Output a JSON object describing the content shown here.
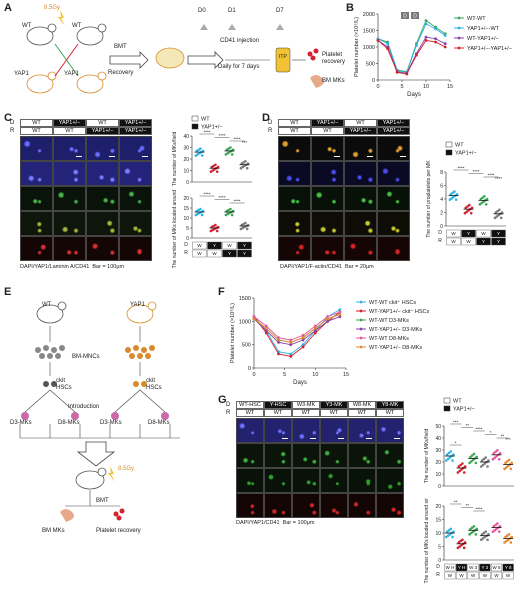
{
  "panels": {
    "A": {
      "label": "A",
      "texts": {
        "dose": "8.5Gy",
        "wt1": "WT",
        "wt2": "WT",
        "yap1": "YAP1",
        "yap2": "YAP1",
        "sup": "+/-",
        "bmt": "BMT",
        "recovery": "Recovery",
        "d0": "D0",
        "d1": "D1",
        "d7": "D7",
        "cd41": "CD41 injection",
        "daily": "Daily for 7 days",
        "itp": "ITP",
        "platelet": "Platelet",
        "recovery2": "recovery",
        "bmmks": "BM MKs"
      }
    },
    "B": {
      "label": "B",
      "ylabel": "Platelet number (×10⁹/L)",
      "xlabel": "Days",
      "legend": [
        "WT-WT",
        "YAP1+/−-WT",
        "WT-YAP1+/−",
        "YAP1+/−-YAP1+/−"
      ],
      "markers": [
        "D",
        "D"
      ]
    },
    "C": {
      "label": "C",
      "D_row": [
        "WT",
        "YAP1+/−",
        "WT",
        "YAP1+/−"
      ],
      "R_row": [
        "WT",
        "WT",
        "YAP1+/−",
        "YAP1+/−"
      ],
      "legend": [
        "WT",
        "YAP1+/−"
      ],
      "chart1_ylabel": "The number of MKs/field",
      "chart2_ylabel": "The number of MKs located around sinusoids",
      "stain": "DAPI/YAP1/Laminin A/CD41",
      "bar": "Bar = 100μm",
      "xtable_D": [
        "W",
        "Y",
        "W",
        "Y"
      ],
      "xtable_R": [
        "W",
        "W",
        "Y",
        "Y"
      ]
    },
    "D": {
      "label": "D",
      "D_row": [
        "WT",
        "YAP1+/−",
        "WT",
        "YAP1+/−"
      ],
      "R_row": [
        "WT",
        "WT",
        "YAP1+/−",
        "YAP1+/−"
      ],
      "legend": [
        "WT",
        "YAP1+/−"
      ],
      "chart_ylabel": "The number of proplatelets per MK",
      "stain": "DAPI/YAP1/F-actin/CD41",
      "bar": "Bar = 20μm",
      "xtable_D": [
        "W",
        "Y",
        "W",
        "Y"
      ],
      "xtable_R": [
        "W",
        "W",
        "Y",
        "Y"
      ]
    },
    "E": {
      "label": "E",
      "texts": {
        "wt": "WT",
        "yap": "YAP1",
        "bmmncs": "BM-MNCs",
        "ckit1": "ckit",
        "hscs1": "HSCs",
        "ckit2": "ckit",
        "hscs2": "HSCs",
        "intro": "Introduction",
        "d3a": "D3-MKs",
        "d8a": "D8-MKs",
        "d3b": "D3-MKs",
        "d8b": "D8-MKs",
        "dose": "8.5Gy",
        "bmt": "BMT",
        "bmmks": "BM MKs",
        "plt": "Platelet recovery"
      }
    },
    "F": {
      "label": "F",
      "ylabel": "Platelet number (×10⁹/L)",
      "xlabel": "Days",
      "legend": [
        "WT-WT ckit⁺ HSCs",
        "WT-YAP1+/− ckit⁺ HSCs",
        "WT-WT D3-MKs",
        "WT-YAP1+/− D3-MKs",
        "WT-WT D8-MKs",
        "WT-YAP1+/− D8-MKs"
      ]
    },
    "G": {
      "label": "G",
      "D_row": [
        "WT-HSC",
        "Y-HSC",
        "W3-MK",
        "Y3-MK",
        "W8-MK",
        "Y8-MK"
      ],
      "R_row": [
        "WT",
        "WT",
        "WT",
        "WT",
        "WT",
        "WT"
      ],
      "legend": [
        "WT",
        "YAP1+/−"
      ],
      "chart1_ylabel": "The number of MKs/field",
      "chart2_ylabel": "The number of MKs located around sinusoids",
      "stain": "DAPI/YAP1/CD41",
      "bar": "Bar = 100μm",
      "xtable_D": [
        "W H",
        "Y H",
        "W 3",
        "Y 3",
        "W 8",
        "Y 8"
      ],
      "xtable_R": [
        "W",
        "W",
        "W",
        "W",
        "W",
        "W"
      ]
    }
  },
  "chart_data": [
    {
      "type": "line",
      "panel": "B",
      "x": [
        0,
        2,
        4,
        6,
        8,
        10,
        12,
        14
      ],
      "xlabel": "Days",
      "ylabel": "Platelet number (×10⁹/L)",
      "xlim": [
        0,
        15
      ],
      "ylim": [
        0,
        2000
      ],
      "yticks": [
        0,
        500,
        1000,
        1500,
        2000
      ],
      "xticks": [
        0,
        5,
        10,
        15
      ],
      "series": [
        {
          "name": "WT-WT",
          "color": "#3aa655",
          "values": [
            1250,
            1150,
            300,
            250,
            1100,
            1800,
            1600,
            1400
          ]
        },
        {
          "name": "YAP1+/−-WT",
          "color": "#2db4e6",
          "values": [
            1250,
            1100,
            280,
            230,
            1050,
            1700,
            1550,
            1350
          ]
        },
        {
          "name": "WT-YAP1+/−",
          "color": "#8a3ea8",
          "values": [
            1200,
            1000,
            250,
            200,
            800,
            1300,
            1250,
            1100
          ]
        },
        {
          "name": "YAP1+/−-YAP1+/−",
          "color": "#d6202e",
          "values": [
            1200,
            950,
            230,
            180,
            750,
            1200,
            1150,
            1000
          ]
        }
      ]
    },
    {
      "type": "scatter",
      "panel": "C",
      "title": "The number of MKs/field",
      "categories": [
        "W/W",
        "Y/W",
        "W/Y",
        "Y/Y"
      ],
      "ylim": [
        0,
        40
      ],
      "yticks": [
        0,
        10,
        20,
        30,
        40
      ],
      "series": [
        {
          "name": "WT",
          "values": [
            26,
            12,
            27,
            15
          ]
        }
      ],
      "significance": [
        "****",
        "****",
        "****",
        "***"
      ]
    },
    {
      "type": "scatter",
      "panel": "C",
      "title": "The number of MKs located around sinusoids",
      "categories": [
        "W/W",
        "Y/W",
        "W/Y",
        "Y/Y"
      ],
      "ylim": [
        0,
        20
      ],
      "yticks": [
        0,
        5,
        10,
        15,
        20
      ],
      "series": [
        {
          "name": "WT",
          "values": [
            13,
            5,
            13,
            6
          ]
        }
      ],
      "significance": [
        "****",
        "****",
        "****"
      ]
    },
    {
      "type": "scatter",
      "panel": "D",
      "title": "The number of proplatelets per MK",
      "categories": [
        "W/W",
        "Y/W",
        "W/Y",
        "Y/Y"
      ],
      "ylim": [
        0,
        8
      ],
      "yticks": [
        0,
        2,
        4,
        6,
        8
      ],
      "series": [
        {
          "name": "WT",
          "values": [
            4.5,
            2.5,
            3.8,
            1.8
          ]
        }
      ],
      "significance": [
        "****",
        "****",
        "****",
        "****"
      ]
    },
    {
      "type": "line",
      "panel": "F",
      "x": [
        0,
        2,
        4,
        6,
        8,
        10,
        12,
        14
      ],
      "xlabel": "Days",
      "ylabel": "Platelet number (×10⁹/L)",
      "xlim": [
        0,
        15
      ],
      "ylim": [
        0,
        1500
      ],
      "yticks": [
        0,
        500,
        1000,
        1500
      ],
      "xticks": [
        0,
        5,
        10,
        15
      ],
      "series": [
        {
          "name": "WT-WT ckit⁺ HSCs",
          "color": "#2db4e6",
          "values": [
            1100,
            800,
            350,
            300,
            500,
            800,
            1100,
            1250
          ]
        },
        {
          "name": "WT-YAP1+/− ckit⁺ HSCs",
          "color": "#d6202e",
          "values": [
            1100,
            750,
            300,
            250,
            450,
            750,
            1000,
            1200
          ]
        },
        {
          "name": "WT-WT D3-MKs",
          "color": "#3aa655",
          "values": [
            1050,
            850,
            600,
            550,
            650,
            850,
            1050,
            1150
          ]
        },
        {
          "name": "WT-YAP1+/− D3-MKs",
          "color": "#8a3ea8",
          "values": [
            1050,
            800,
            550,
            500,
            600,
            800,
            1000,
            1100
          ]
        },
        {
          "name": "WT-WT D8-MKs",
          "color": "#e8559e",
          "values": [
            1100,
            900,
            650,
            600,
            700,
            900,
            1100,
            1200
          ]
        },
        {
          "name": "WT-YAP1+/− D8-MKs",
          "color": "#e6892d",
          "values": [
            1050,
            850,
            600,
            550,
            650,
            850,
            1050,
            1150
          ]
        }
      ]
    },
    {
      "type": "scatter",
      "panel": "G",
      "title": "The number of MKs/field",
      "categories": [
        "WH",
        "YH",
        "W3",
        "Y3",
        "W8",
        "Y8"
      ],
      "ylim": [
        0,
        50
      ],
      "yticks": [
        0,
        10,
        20,
        30,
        40,
        50
      ],
      "series": [
        {
          "name": "WT",
          "values": [
            25,
            15,
            23,
            20,
            26,
            18
          ]
        }
      ],
      "significance": [
        "***",
        "**",
        "****",
        "*",
        "**",
        "***",
        "*"
      ]
    },
    {
      "type": "scatter",
      "panel": "G",
      "title": "The number of MKs located around sinusoids",
      "categories": [
        "WH",
        "YH",
        "W3",
        "Y3",
        "W8",
        "Y8"
      ],
      "ylim": [
        0,
        20
      ],
      "yticks": [
        0,
        5,
        10,
        15,
        20
      ],
      "series": [
        {
          "name": "WT",
          "values": [
            10,
            6,
            11,
            9,
            12,
            8
          ]
        }
      ],
      "significance": [
        "**",
        "**",
        "****"
      ]
    }
  ],
  "colors": {
    "wt": "#ffffff",
    "yap": "#111111",
    "green": "#3aa655",
    "cyan": "#2db4e6",
    "purple": "#8a3ea8",
    "red": "#d6202e",
    "orange": "#e6892d",
    "pink": "#e8559e",
    "itp": "#f3c234"
  }
}
